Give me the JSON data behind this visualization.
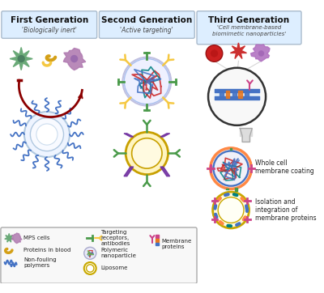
{
  "bg_color": "#ffffff",
  "box_bg": "#ddeeff",
  "box_edge": "#aabbcc",
  "gen1_title": "First Generation",
  "gen1_subtitle": "'Biologically inert'",
  "gen2_title": "Second Generation",
  "gen2_subtitle": "'Active targeting'",
  "gen3_title": "Third Generation",
  "gen3_subtitle": "'Cell membrane-based\nbiomimetic nanoparticles'",
  "whole_cell_label": "Whole cell\nmembrane coating",
  "isolation_label": "Isolation and\nintegration of\nmembrane proteins",
  "cell_green": "#6aaa78",
  "cell_purple": "#b07ab0",
  "gold": "#d4a017",
  "gold_light": "#f5c842",
  "dark_red": "#8b0000",
  "blue": "#4472c4",
  "blue_light": "#aaccee",
  "green_ab": "#4a9a4a",
  "purple_ab": "#7030a0",
  "red_line": "#cc2222",
  "teal": "#008080",
  "pink": "#cc4488",
  "orange": "#e87820"
}
